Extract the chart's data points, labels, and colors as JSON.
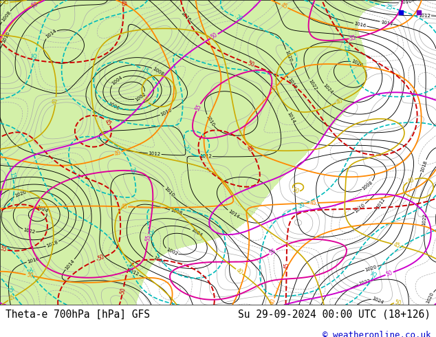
{
  "title_left": "Theta-e 700hPa [hPa] GFS",
  "title_right": "Su 29-09-2024 00:00 UTC (18+126)",
  "copyright": "© weatheronline.co.uk",
  "bg_color": "#ffffff",
  "map_bg": "#ffffff",
  "green_fill": "#ccee99",
  "title_fontsize": 10.5,
  "copyright_fontsize": 9,
  "copyright_color": "#0000cc",
  "fig_width": 6.34,
  "fig_height": 4.9
}
